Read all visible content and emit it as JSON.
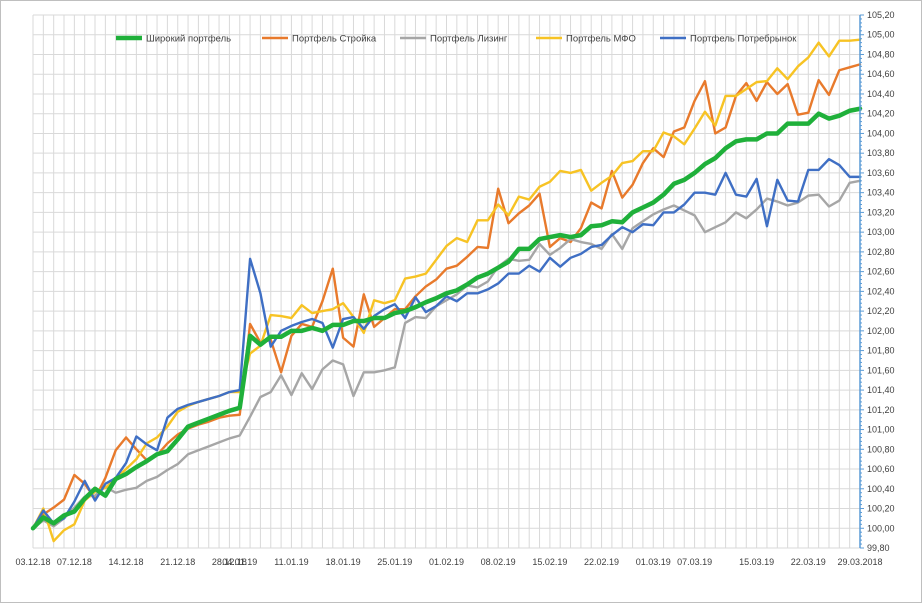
{
  "chart_data": {
    "type": "line",
    "title": "",
    "xlabel": "",
    "ylabel": "",
    "ylim": [
      99.8,
      105.2
    ],
    "y_axis_position": "right",
    "y_ticks": [
      "99,80",
      "100,00",
      "100,20",
      "100,40",
      "100,60",
      "100,80",
      "101,00",
      "101,20",
      "101,40",
      "101,60",
      "101,80",
      "102,00",
      "102,20",
      "102,40",
      "102,60",
      "102,80",
      "103,00",
      "103,20",
      "103,40",
      "103,60",
      "103,80",
      "104,00",
      "104,20",
      "104,40",
      "104,60",
      "104,80",
      "105,00",
      "105,20"
    ],
    "x_tick_labels": [
      "03.12.18",
      "07.12.18",
      "14.12.18",
      "21.12.18",
      "28.12.18",
      "04.01.19",
      "11.01.19",
      "18.01.19",
      "25.01.19",
      "01.02.19",
      "08.02.19",
      "15.02.19",
      "22.02.19",
      "01.03.19",
      "07.03.19",
      "15.03.19",
      "22.03.19",
      "29.03.2018"
    ],
    "x_tick_index": [
      0,
      4,
      9,
      14,
      19,
      20,
      25,
      30,
      35,
      40,
      45,
      50,
      55,
      60,
      64,
      70,
      75,
      80
    ],
    "grid": true,
    "legend_position": "top",
    "colors": {
      "Широкий портфель": "#1fb03a",
      "Портфель Стройка": "#e87a2c",
      "Портфель Лизинг": "#a6a6a6",
      "Портфель МФО": "#f7c324",
      "Портфель Потребрынок": "#3f6fc4"
    },
    "series": [
      {
        "name": "Широкий портфель",
        "values": [
          100.0,
          100.11,
          100.05,
          100.13,
          100.17,
          100.3,
          100.4,
          100.33,
          100.5,
          100.55,
          100.62,
          100.68,
          100.75,
          100.78,
          100.9,
          101.03,
          101.07,
          101.11,
          101.15,
          101.19,
          101.22,
          101.95,
          101.86,
          101.94,
          101.94,
          102.0,
          102.0,
          102.03,
          102.0,
          102.06,
          102.06,
          102.1,
          102.1,
          102.13,
          102.13,
          102.18,
          102.2,
          102.24,
          102.29,
          102.33,
          102.38,
          102.41,
          102.47,
          102.54,
          102.58,
          102.64,
          102.7,
          102.83,
          102.83,
          102.93,
          102.95,
          102.97,
          102.95,
          102.97,
          103.06,
          103.07,
          103.11,
          103.1,
          103.2,
          103.25,
          103.3,
          103.38,
          103.49,
          103.53,
          103.6,
          103.69,
          103.75,
          103.85,
          103.92,
          103.94,
          103.94,
          104.0,
          104.0,
          104.1,
          104.1,
          104.1,
          104.2,
          104.15,
          104.18,
          104.23,
          104.25
        ]
      },
      {
        "name": "Портфель Стройка",
        "values": [
          100.0,
          100.14,
          100.21,
          100.29,
          100.54,
          100.45,
          100.3,
          100.51,
          100.79,
          100.92,
          100.8,
          100.69,
          100.74,
          100.86,
          100.95,
          101.01,
          101.05,
          101.08,
          101.12,
          101.14,
          101.15,
          102.07,
          101.88,
          101.91,
          101.58,
          101.95,
          102.07,
          102.04,
          102.3,
          102.63,
          101.93,
          101.84,
          102.37,
          102.04,
          102.13,
          102.22,
          102.22,
          102.35,
          102.45,
          102.52,
          102.63,
          102.66,
          102.75,
          102.85,
          102.84,
          103.44,
          103.09,
          103.19,
          103.27,
          103.39,
          102.85,
          102.94,
          102.9,
          103.04,
          103.3,
          103.24,
          103.62,
          103.35,
          103.48,
          103.7,
          103.85,
          103.76,
          104.02,
          104.06,
          104.33,
          104.53,
          104.0,
          104.06,
          104.38,
          104.51,
          104.33,
          104.52,
          104.4,
          104.5,
          104.19,
          104.21,
          104.54,
          104.39,
          104.64,
          104.67,
          104.7
        ]
      },
      {
        "name": "Портфель Лизинг",
        "values": [
          100.0,
          100.08,
          100.02,
          100.1,
          100.21,
          100.32,
          100.33,
          100.42,
          100.36,
          100.39,
          100.41,
          100.48,
          100.52,
          100.59,
          100.65,
          100.75,
          100.79,
          100.83,
          100.87,
          100.91,
          100.94,
          101.13,
          101.33,
          101.38,
          101.55,
          101.35,
          101.57,
          101.41,
          101.61,
          101.7,
          101.66,
          101.34,
          101.58,
          101.58,
          101.6,
          101.63,
          102.08,
          102.14,
          102.13,
          102.25,
          102.31,
          102.37,
          102.46,
          102.44,
          102.5,
          102.65,
          102.73,
          102.71,
          102.72,
          102.88,
          102.77,
          102.84,
          102.93,
          102.9,
          102.88,
          102.83,
          102.98,
          102.83,
          103.04,
          103.11,
          103.18,
          103.23,
          103.27,
          103.22,
          103.17,
          103.0,
          103.05,
          103.1,
          103.2,
          103.14,
          103.23,
          103.34,
          103.31,
          103.27,
          103.3,
          103.37,
          103.38,
          103.26,
          103.32,
          103.5,
          103.52
        ]
      },
      {
        "name": "Портфель МФО",
        "values": [
          100.0,
          100.2,
          99.87,
          99.98,
          100.04,
          100.28,
          100.37,
          100.41,
          100.5,
          100.6,
          100.7,
          100.86,
          100.92,
          101.03,
          101.18,
          101.24,
          101.28,
          101.31,
          101.34,
          101.38,
          101.38,
          101.77,
          101.85,
          102.16,
          102.15,
          102.13,
          102.26,
          102.18,
          102.2,
          102.22,
          102.28,
          102.14,
          101.98,
          102.31,
          102.28,
          102.31,
          102.53,
          102.55,
          102.58,
          102.72,
          102.86,
          102.94,
          102.9,
          103.12,
          103.12,
          103.28,
          103.17,
          103.36,
          103.33,
          103.46,
          103.51,
          103.62,
          103.6,
          103.63,
          103.42,
          103.5,
          103.57,
          103.7,
          103.72,
          103.82,
          103.82,
          104.01,
          103.97,
          103.89,
          104.05,
          104.22,
          104.08,
          104.38,
          104.38,
          104.45,
          104.52,
          104.53,
          104.66,
          104.55,
          104.68,
          104.77,
          104.92,
          104.78,
          104.94,
          104.94,
          104.95
        ]
      },
      {
        "name": "Портфель Потребрынок",
        "values": [
          100.0,
          100.18,
          100.05,
          100.1,
          100.27,
          100.48,
          100.28,
          100.45,
          100.51,
          100.66,
          100.93,
          100.85,
          100.79,
          101.12,
          101.21,
          101.25,
          101.28,
          101.31,
          101.34,
          101.38,
          101.4,
          102.73,
          102.38,
          101.84,
          102.0,
          102.05,
          102.09,
          102.12,
          102.08,
          101.83,
          102.12,
          102.14,
          102.02,
          102.15,
          102.22,
          102.27,
          102.13,
          102.34,
          102.19,
          102.25,
          102.35,
          102.3,
          102.38,
          102.38,
          102.42,
          102.48,
          102.58,
          102.58,
          102.66,
          102.6,
          102.74,
          102.65,
          102.74,
          102.78,
          102.85,
          102.87,
          102.97,
          103.05,
          103.0,
          103.08,
          103.07,
          103.2,
          103.2,
          103.28,
          103.4,
          103.4,
          103.38,
          103.6,
          103.38,
          103.36,
          103.54,
          103.06,
          103.53,
          103.32,
          103.31,
          103.63,
          103.63,
          103.74,
          103.68,
          103.56,
          103.56
        ]
      }
    ]
  }
}
